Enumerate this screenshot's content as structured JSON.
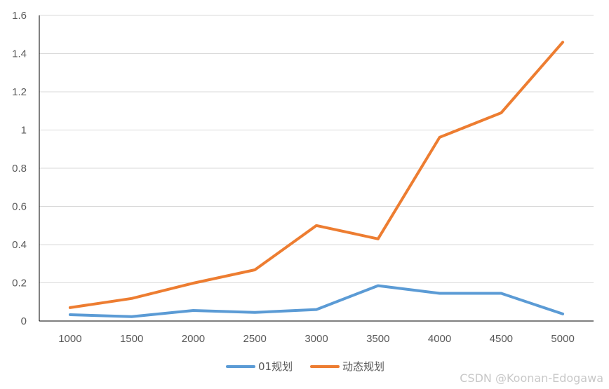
{
  "chart_data": {
    "type": "line",
    "title": "",
    "xlabel": "",
    "ylabel": "",
    "categories": [
      "1000",
      "1500",
      "2000",
      "2500",
      "3000",
      "3500",
      "4000",
      "4500",
      "5000"
    ],
    "ylim": [
      0,
      1.6
    ],
    "y_ticks": [
      "0",
      "0.2",
      "0.4",
      "0.6",
      "0.8",
      "1",
      "1.2",
      "1.4",
      "1.6"
    ],
    "grid": true,
    "legend_position": "bottom",
    "series": [
      {
        "name": "01规划",
        "color": "#5b9bd5",
        "values": [
          0.033,
          0.023,
          0.055,
          0.045,
          0.06,
          0.185,
          0.145,
          0.145,
          0.037
        ]
      },
      {
        "name": "动态规划",
        "color": "#ed7d31",
        "values": [
          0.07,
          0.118,
          0.198,
          0.268,
          0.5,
          0.43,
          0.962,
          1.09,
          1.46
        ]
      }
    ]
  },
  "watermark": "CSDN @Koonan-Edogawa"
}
